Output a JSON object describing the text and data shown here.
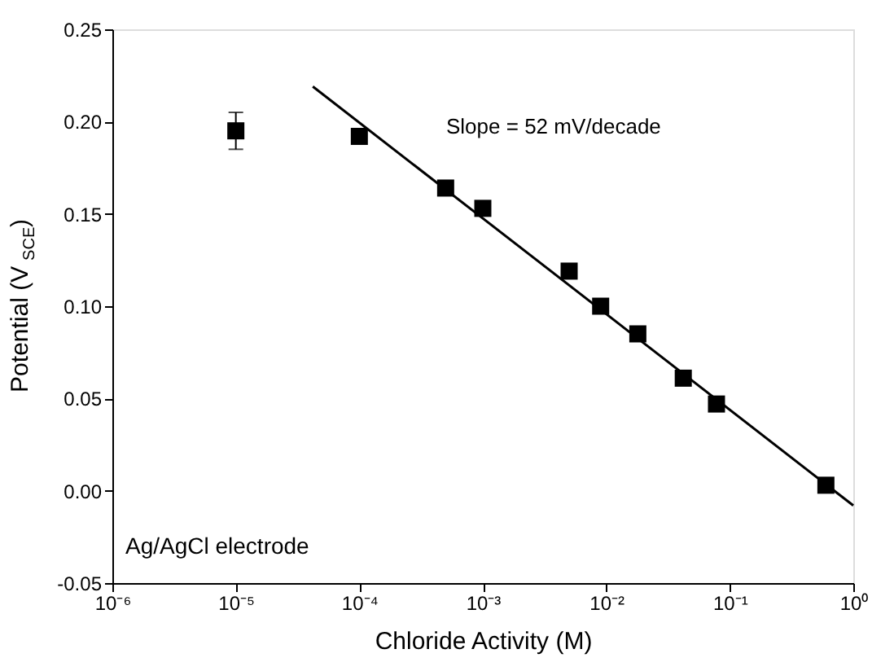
{
  "chart_data": {
    "type": "scatter",
    "xlabel": "Chloride Activity (M)",
    "ylabel": "Potential (V$_{SCE}$)",
    "log": "x",
    "xlim": [
      1e-06,
      1
    ],
    "ylim": [
      -0.05,
      0.25
    ],
    "xticks": [
      {
        "value": 1e-06,
        "label": "10⁻⁶"
      },
      {
        "value": 1e-05,
        "label": "10⁻⁵"
      },
      {
        "value": 0.0001,
        "label": "10⁻⁴"
      },
      {
        "value": 0.001,
        "label": "10⁻³"
      },
      {
        "value": 0.01,
        "label": "10⁻²"
      },
      {
        "value": 0.1,
        "label": "10⁻¹"
      },
      {
        "value": 1,
        "label": "10⁰"
      }
    ],
    "yticks": [
      {
        "value": -0.05,
        "label": "-0.05"
      },
      {
        "value": 0,
        "label": "0.00"
      },
      {
        "value": 0.05,
        "label": "0.05"
      },
      {
        "value": 0.1,
        "label": "0.10"
      },
      {
        "value": 0.15,
        "label": "0.15"
      },
      {
        "value": 0.2,
        "label": "0.20"
      },
      {
        "value": 0.25,
        "label": "0.25"
      }
    ],
    "grid": false,
    "marker": "square",
    "annotations": [
      "Slope = 52 mV/decade",
      "Ag/AgCl electrode"
    ],
    "series": [
      {
        "color": "#000000",
        "x": [
          1e-05,
          0.0001,
          0.0005,
          0.001,
          0.005,
          0.009,
          0.018,
          0.042,
          0.078,
          0.6
        ],
        "values": [
          0.195,
          0.192,
          0.164,
          0.153,
          0.119,
          0.1,
          0.085,
          0.061,
          0.047,
          0.003
        ],
        "errors": [
          0.01,
          null,
          null,
          null,
          null,
          null,
          null,
          null,
          null,
          null
        ]
      },
      {
        "type": "line",
        "marker": "none",
        "color": "#000000",
        "x": [
          4.2e-05,
          1
        ],
        "values": [
          0.219,
          -0.008
        ]
      }
    ]
  }
}
